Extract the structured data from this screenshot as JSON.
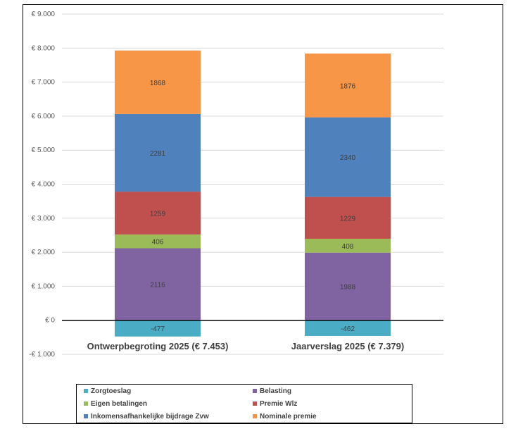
{
  "chart_data": {
    "type": "bar",
    "stacked": true,
    "categories": [
      "Ontwerpbegroting 2025 (€ 7.453)",
      "Jaarverslag 2025 (€ 7.379)"
    ],
    "series": [
      {
        "name": "Zorgtoeslag",
        "color": "#4BACC6",
        "values": [
          -477,
          -462
        ]
      },
      {
        "name": "Belasting",
        "color": "#8064A2",
        "values": [
          2116,
          1988
        ]
      },
      {
        "name": "Eigen betalingen",
        "color": "#9BBB59",
        "values": [
          406,
          408
        ]
      },
      {
        "name": "Premie Wlz",
        "color": "#C0504D",
        "values": [
          1259,
          1229
        ]
      },
      {
        "name": "Inkomensafhankelijke bijdrage Zvw",
        "color": "#4F81BD",
        "values": [
          2281,
          2340
        ]
      },
      {
        "name": "Nominale premie",
        "color": "#F79646",
        "values": [
          1868,
          1876
        ]
      }
    ],
    "ylim": [
      -1000,
      9000
    ],
    "yticks": [
      -1000,
      0,
      1000,
      2000,
      3000,
      4000,
      5000,
      6000,
      7000,
      8000,
      9000
    ],
    "ytick_labels": [
      "-€ 1.000",
      "€ 0",
      "€ 1.000",
      "€ 2.000",
      "€ 3.000",
      "€ 4.000",
      "€ 5.000",
      "€ 6.000",
      "€ 7.000",
      "€ 8.000",
      "€ 9.000"
    ],
    "grid": true,
    "legend_position": "bottom",
    "legend_order": [
      "Zorgtoeslag",
      "Belasting",
      "Eigen betalingen",
      "Premie Wlz",
      "Inkomensafhankelijke bijdrage Zvw",
      "Nominale premie"
    ]
  }
}
